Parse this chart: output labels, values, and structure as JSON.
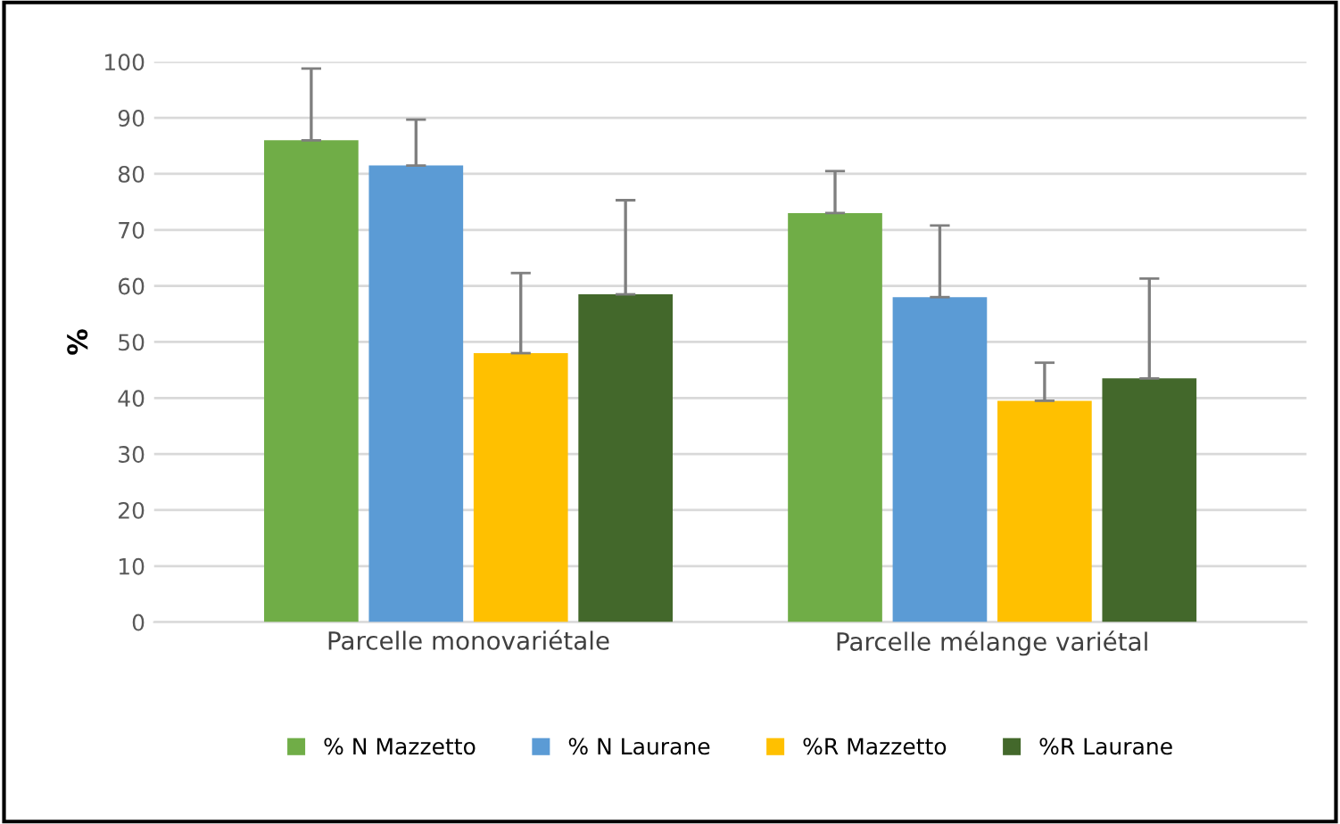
{
  "chart_data": {
    "type": "bar",
    "ylabel": "%",
    "categories": [
      "Parcelle monovariétale",
      "Parcelle mélange variétal"
    ],
    "series": [
      {
        "name": "% N Mazzetto",
        "color": "#70ad47",
        "values": [
          86,
          73
        ],
        "errors": [
          [
            86,
            98.8
          ],
          [
            73,
            80.5
          ]
        ]
      },
      {
        "name": "% N Laurane",
        "color": "#5b9bd5",
        "values": [
          81.5,
          58
        ],
        "errors": [
          [
            81.5,
            89.7
          ],
          [
            58,
            70.8
          ]
        ]
      },
      {
        "name": "%R Mazzetto",
        "color": "#ffc000",
        "values": [
          48,
          39.5
        ],
        "errors": [
          [
            48,
            62.3
          ],
          [
            39.5,
            46.3
          ]
        ]
      },
      {
        "name": "%R Laurane",
        "color": "#43682b",
        "values": [
          58.5,
          43.5
        ],
        "errors": [
          [
            58.5,
            75.3
          ],
          [
            43.5,
            61.3
          ]
        ]
      }
    ],
    "ylim": [
      0,
      100
    ],
    "yticks": [
      0,
      10,
      20,
      30,
      40,
      50,
      60,
      70,
      80,
      90,
      100
    ],
    "grid": "y",
    "legend": "bottom"
  }
}
